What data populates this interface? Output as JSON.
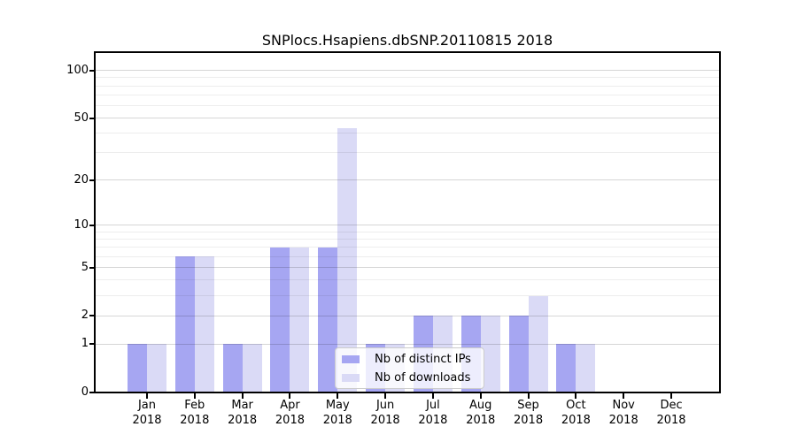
{
  "chart_data": {
    "type": "bar",
    "title": "SNPlocs.Hsapiens.dbSNP.20110815 2018",
    "xlabel": "",
    "ylabel": "",
    "yscale": "log10(1+x)",
    "ylim": [
      0,
      127
    ],
    "grid": true,
    "legend_position": "lower center inside plot",
    "year_label": "2018",
    "month_labels": [
      "Jan",
      "Feb",
      "Mar",
      "Apr",
      "May",
      "Jun",
      "Jul",
      "Aug",
      "Sep",
      "Oct",
      "Nov",
      "Dec"
    ],
    "categories": [
      "Jan 2018",
      "Feb 2018",
      "Mar 2018",
      "Apr 2018",
      "May 2018",
      "Jun 2018",
      "Jul 2018",
      "Aug 2018",
      "Sep 2018",
      "Oct 2018",
      "Nov 2018",
      "Dec 2018"
    ],
    "yticks": [
      0,
      1,
      2,
      5,
      10,
      20,
      50,
      100
    ],
    "minor_grid_values": [
      3,
      4,
      6,
      7,
      8,
      9,
      30,
      40,
      60,
      70,
      80,
      90
    ],
    "series": [
      {
        "name": "Nb of distinct IPs",
        "color": "#a6a6f2",
        "values": [
          1,
          6,
          1,
          7,
          7,
          1,
          2,
          2,
          2,
          1,
          0,
          0
        ]
      },
      {
        "name": "Nb of downloads",
        "color": "#dadaf6",
        "values": [
          1,
          6,
          1,
          7,
          43,
          1,
          2,
          2,
          3,
          1,
          0,
          0
        ]
      }
    ]
  },
  "colors": {
    "background": "#ffffff",
    "frame": "#000000",
    "bar_distinct_ips": "#a6a6f2",
    "bar_downloads": "#dadaf6",
    "legend_border": "#cccccc"
  }
}
